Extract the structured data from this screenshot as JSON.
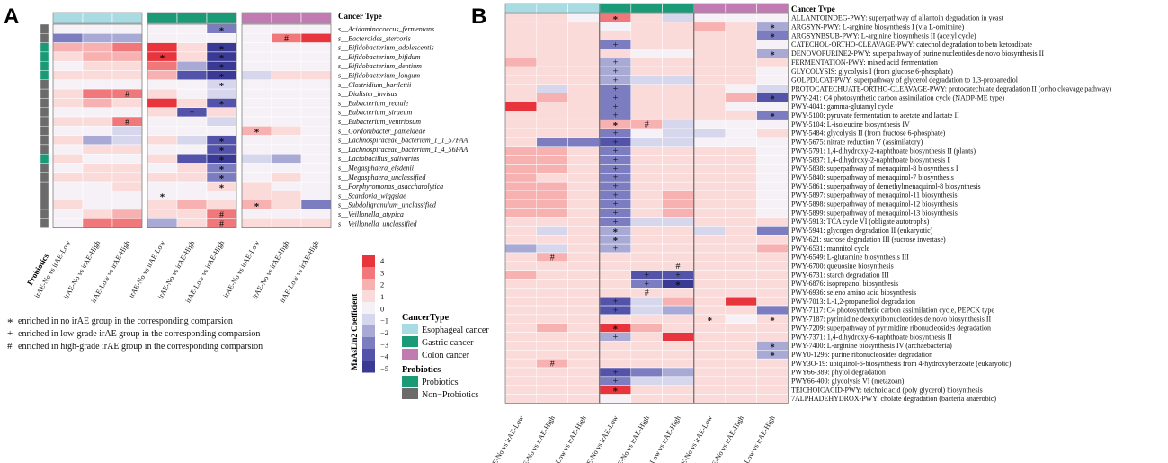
{
  "panel_a": {
    "label": "A",
    "cancer_type_header": "Cancer Type",
    "probiotics_label": "Probiotics",
    "taxa": [
      "s__Acidaminococcus_fermentans",
      "s__Bacteroides_stercoris",
      "s__Bifidobacterium_adolescentis",
      "s__Bifidobacterium_bifidum",
      "s__Bifidobacterium_dentium",
      "s__Bifidobacterium_longum",
      "s__Clostridium_bartlettii",
      "s__Dialister_invisus",
      "s__Eubacterium_rectale",
      "s__Eubacterium_siraeum",
      "s__Eubacterium_ventriosum",
      "s__Gordonibacter_pamelaeae",
      "s__Lachnospiraceae_bacterium_1_1_57FAA",
      "s__Lachnospiraceae_bacterium_1_4_56FAA",
      "s__Lactobacillus_salivarius",
      "s__Megasphaera_elsdenii",
      "s__Megasphaera_unclassified",
      "s__Porphyromonas_asaccharolytica",
      "s__Scardovia_wiggsiae",
      "s__Subdoligranulum_unclassified",
      "s__Veillonella_atypica",
      "s__Veillonella_unclassified"
    ],
    "probiotic_flags": [
      0,
      0,
      1,
      1,
      1,
      1,
      0,
      0,
      0,
      0,
      0,
      0,
      0,
      0,
      1,
      0,
      0,
      0,
      0,
      0,
      0,
      0
    ],
    "values": [
      [
        0,
        0,
        0,
        0,
        0,
        -3,
        0,
        0,
        0
      ],
      [
        -3,
        -2,
        -2,
        0,
        0,
        0,
        0,
        3,
        4
      ],
      [
        2,
        2,
        3,
        4,
        1,
        -5,
        0,
        0,
        0
      ],
      [
        1,
        2,
        2,
        4,
        1,
        -5,
        0,
        0,
        0
      ],
      [
        0,
        1,
        1,
        3,
        -2,
        -5,
        0,
        0,
        0
      ],
      [
        1,
        1,
        1,
        2,
        -4,
        -5,
        -1,
        1,
        1
      ],
      [
        0,
        0,
        0,
        0,
        0,
        -1,
        0,
        0,
        0
      ],
      [
        1,
        3,
        3,
        1,
        0,
        -1,
        0,
        0,
        0
      ],
      [
        1,
        2,
        1,
        4,
        1,
        -4,
        0,
        0,
        0
      ],
      [
        0,
        0,
        0,
        1,
        -4,
        1,
        0,
        0,
        0
      ],
      [
        1,
        1,
        3,
        0,
        0,
        -1,
        0,
        0,
        0
      ],
      [
        0,
        0,
        -1,
        0,
        0,
        0,
        2,
        1,
        0
      ],
      [
        1,
        -2,
        -1,
        1,
        -1,
        -4,
        0,
        0,
        0
      ],
      [
        0,
        1,
        1,
        0,
        0,
        -4,
        0,
        0,
        0
      ],
      [
        1,
        0,
        0,
        1,
        -4,
        -5,
        -1,
        -2,
        0
      ],
      [
        0,
        1,
        1,
        0,
        1,
        -3,
        0,
        0,
        0
      ],
      [
        1,
        1,
        1,
        1,
        1,
        -3,
        0,
        1,
        0
      ],
      [
        0,
        0,
        1,
        0,
        0,
        1,
        1,
        0,
        0
      ],
      [
        0,
        0,
        0,
        0,
        0,
        0,
        1,
        1,
        0
      ],
      [
        1,
        0,
        0,
        1,
        2,
        1,
        2,
        1,
        -3
      ],
      [
        0,
        1,
        2,
        1,
        1,
        3,
        0,
        0,
        0
      ],
      [
        0,
        3,
        3,
        -2,
        1,
        3,
        1,
        1,
        1
      ]
    ],
    "marks": [
      {
        "r": 0,
        "c": 5,
        "m": "*"
      },
      {
        "r": 1,
        "c": 7,
        "m": "#"
      },
      {
        "r": 2,
        "c": 5,
        "m": "*"
      },
      {
        "r": 3,
        "c": 3,
        "m": "*"
      },
      {
        "r": 3,
        "c": 5,
        "m": "*"
      },
      {
        "r": 4,
        "c": 5,
        "m": "*"
      },
      {
        "r": 5,
        "c": 5,
        "m": "*"
      },
      {
        "r": 6,
        "c": 5,
        "m": "*"
      },
      {
        "r": 7,
        "c": 2,
        "m": "#"
      },
      {
        "r": 8,
        "c": 5,
        "m": "*"
      },
      {
        "r": 9,
        "c": 4,
        "m": "+"
      },
      {
        "r": 10,
        "c": 2,
        "m": "#"
      },
      {
        "r": 11,
        "c": 6,
        "m": "*"
      },
      {
        "r": 12,
        "c": 5,
        "m": "*"
      },
      {
        "r": 13,
        "c": 5,
        "m": "*"
      },
      {
        "r": 14,
        "c": 5,
        "m": "*"
      },
      {
        "r": 15,
        "c": 5,
        "m": "*"
      },
      {
        "r": 16,
        "c": 5,
        "m": "*"
      },
      {
        "r": 17,
        "c": 5,
        "m": "*"
      },
      {
        "r": 18,
        "c": 3,
        "m": "*"
      },
      {
        "r": 19,
        "c": 6,
        "m": "*"
      },
      {
        "r": 20,
        "c": 5,
        "m": "#"
      },
      {
        "r": 21,
        "c": 5,
        "m": "#"
      }
    ],
    "columns": [
      "irAE-No vs irAE-Low",
      "irAE-No vs irAE-High",
      "irAE-Low vs irAE-High",
      "irAE-No vs irAE-Low",
      "irAE-No vs irAE-High",
      "irAE-Low vs irAE-High",
      "irAE-No vs irAE-Low",
      "irAE-No vs irAE-High",
      "irAE-Low vs irAE-High"
    ]
  },
  "panel_b": {
    "label": "B",
    "cancer_type_header": "Cancer Type",
    "pathways": [
      "ALLANTOINDEG-PWY: superpathway of allantoin degradation in yeast",
      "ARGSYN-PWY: L-arginine biosynthesis I (via L-ornithine)",
      "ARGSYNBSUB-PWY: L-arginine biosynthesis II (acetyl cycle)",
      "CATECHOL-ORTHO-CLEAVAGE-PWY: catechol degradation to beta ketoadipate",
      "DENOVOPURINE2-PWY: superpathway of purine nucleotides de novo biosynthesis II",
      "FERMENTATION-PWY: mixed acid fermentation",
      "GLYCOLYSIS: glycolysis I (from glucose 6-phosphate)",
      "GOLPDLCAT-PWY: superpathway of glycerol degradation to 1,3-propanediol",
      "PROTOCATECHUATE-ORTHO-CLEAVAGE-PWY: protocatechuate degradation II (ortho cleavage pathway)",
      "PWY-241: C4 photosynthetic carbon assimilation cycle (NADP-ME type)",
      "PWY-4041: gamma-glutamyl cycle",
      "PWY-5100: pyruvate fermentation to acetate and lactate II",
      "PWY-5104: L-isoleucine biosynthesis IV",
      "PWY-5484: glycolysis II (from fructose 6-phosphate)",
      "PWY-5675: nitrate reduction V (assimilatory)",
      "PWY-5791: 1,4-dihydroxy-2-naphthoate biosynthesis II (plants)",
      "PWY-5837: 1,4-dihydroxy-2-naphthoate biosynthesis I",
      "PWY-5838: superpathway of menaquinol-8 biosynthesis I",
      "PWY-5840: superpathway of menaquinol-7 biosynthesis",
      "PWY-5861: superpathway of demethylmenaquinol-8 biosynthesis",
      "PWY-5897: superpathway of menaquinol-11 biosynthesis",
      "PWY-5898: superpathway of menaquinol-12 biosynthesis",
      "PWY-5899: superpathway of menaquinol-13 biosynthesis",
      "PWY-5913: TCA cycle VI (obligate autotrophs)",
      "PWY-5941: glycogen degradation II (eukaryotic)",
      "PWY-621: sucrose degradation III (sucrose invertase)",
      "PWY-6531: mannitol cycle",
      "PWY-6549: L-glutamine biosynthesis III",
      "PWY-6700: queuosine biosynthesis",
      "PWY-6731: starch degradation III",
      "PWY-6876: isopropanol biosynthesis",
      "PWY-6936: seleno amino acid biosynthesis",
      "PWY-7013: L-1,2-propanediol degradation",
      "PWY-7117: C4 photosynthetic carbon assimilation cycle, PEPCK type",
      "PWY-7187: pyrimidine deoxyribonucleotides de novo biosynthesis II",
      "PWY-7209: superpathway of pyrimidine ribonucleosides degradation",
      "PWY-7371: 1,4-dihydroxy-6-naphthoate biosynthesis II",
      "PWY-7400: L-arginine biosynthesis IV (archaebacteria)",
      "PWY0-1296: purine ribonucleosides degradation",
      "PWY3O-19: ubiquinol-6-biosynthesis from 4-hydroxybenzoate (eukaryotic)",
      "PWY66-389: phytol degradation",
      "PWY66-400: glycolysis VI (metazoan)",
      "TEICHOICACID-PWY: teichoic acid (poly glycerol) biosynthesis",
      "7ALPHADEHYDROX-PWY: cholate degradation (bacteria anaerobic)"
    ],
    "values": [
      [
        1,
        1,
        0,
        3,
        1,
        -1,
        0,
        0,
        0
      ],
      [
        1,
        1,
        1,
        0,
        1,
        1,
        2,
        1,
        -2
      ],
      [
        1,
        1,
        1,
        1,
        1,
        1,
        1,
        1,
        -3
      ],
      [
        1,
        1,
        1,
        -3,
        1,
        1,
        1,
        1,
        0
      ],
      [
        1,
        1,
        1,
        1,
        0,
        0,
        1,
        1,
        -2
      ],
      [
        2,
        1,
        1,
        -2,
        1,
        1,
        1,
        1,
        1
      ],
      [
        1,
        1,
        1,
        -2,
        1,
        1,
        1,
        1,
        0
      ],
      [
        1,
        1,
        1,
        -2,
        -1,
        -1,
        1,
        1,
        0
      ],
      [
        1,
        -1,
        1,
        -3,
        1,
        1,
        1,
        0,
        -1
      ],
      [
        1,
        2,
        1,
        -3,
        1,
        1,
        1,
        2,
        -4
      ],
      [
        4,
        1,
        1,
        -3,
        1,
        1,
        1,
        0,
        0
      ],
      [
        1,
        1,
        1,
        -3,
        1,
        1,
        1,
        1,
        -3
      ],
      [
        1,
        1,
        1,
        2,
        2,
        -1,
        0,
        0,
        0
      ],
      [
        1,
        1,
        1,
        -3,
        0,
        -1,
        -1,
        0,
        1
      ],
      [
        1,
        -3,
        -3,
        -4,
        -1,
        -1,
        0,
        0,
        0
      ],
      [
        2,
        2,
        1,
        -3,
        1,
        1,
        1,
        1,
        0
      ],
      [
        2,
        2,
        1,
        -3,
        1,
        1,
        1,
        1,
        0
      ],
      [
        2,
        2,
        1,
        -3,
        1,
        1,
        1,
        1,
        0
      ],
      [
        2,
        1,
        1,
        -3,
        1,
        1,
        1,
        1,
        0
      ],
      [
        2,
        2,
        1,
        -3,
        1,
        1,
        1,
        1,
        0
      ],
      [
        2,
        2,
        1,
        -3,
        1,
        2,
        1,
        1,
        0
      ],
      [
        2,
        2,
        1,
        -3,
        1,
        2,
        1,
        1,
        0
      ],
      [
        2,
        2,
        1,
        -3,
        1,
        2,
        1,
        1,
        0
      ],
      [
        1,
        1,
        1,
        -3,
        -1,
        -1,
        1,
        1,
        1
      ],
      [
        1,
        -1,
        1,
        -2,
        1,
        1,
        -1,
        1,
        -3
      ],
      [
        1,
        1,
        1,
        -2,
        1,
        1,
        1,
        1,
        1
      ],
      [
        -2,
        -1,
        1,
        -2,
        1,
        1,
        1,
        1,
        2
      ],
      [
        1,
        2,
        1,
        1,
        1,
        1,
        1,
        1,
        1
      ],
      [
        1,
        1,
        1,
        1,
        1,
        1,
        1,
        1,
        1
      ],
      [
        2,
        1,
        1,
        1,
        -4,
        -4,
        1,
        1,
        1
      ],
      [
        1,
        1,
        1,
        1,
        -3,
        -5,
        1,
        1,
        1
      ],
      [
        1,
        1,
        1,
        1,
        1,
        1,
        1,
        1,
        1
      ],
      [
        1,
        1,
        1,
        -4,
        -1,
        2,
        1,
        4,
        1
      ],
      [
        1,
        1,
        1,
        -4,
        -1,
        -2,
        1,
        1,
        -3
      ],
      [
        1,
        1,
        1,
        1,
        1,
        1,
        1,
        0,
        1
      ],
      [
        1,
        2,
        1,
        4,
        2,
        1,
        1,
        1,
        1
      ],
      [
        1,
        1,
        1,
        -2,
        1,
        4,
        1,
        1,
        1
      ],
      [
        1,
        1,
        1,
        1,
        1,
        1,
        1,
        1,
        -2
      ],
      [
        1,
        1,
        1,
        1,
        1,
        1,
        1,
        1,
        -2
      ],
      [
        1,
        2,
        1,
        1,
        1,
        1,
        1,
        1,
        1
      ],
      [
        1,
        1,
        1,
        -4,
        -3,
        -2,
        1,
        1,
        1
      ],
      [
        1,
        1,
        1,
        -3,
        -1,
        -1,
        1,
        1,
        1
      ],
      [
        1,
        1,
        1,
        4,
        1,
        1,
        1,
        1,
        1
      ],
      [
        1,
        1,
        1,
        0,
        1,
        1,
        1,
        1,
        1
      ]
    ],
    "marks": [
      {
        "r": 0,
        "c": 3,
        "m": "*"
      },
      {
        "r": 1,
        "c": 8,
        "m": "*"
      },
      {
        "r": 2,
        "c": 8,
        "m": "*"
      },
      {
        "r": 3,
        "c": 3,
        "m": "+"
      },
      {
        "r": 4,
        "c": 8,
        "m": "*"
      },
      {
        "r": 5,
        "c": 3,
        "m": "+"
      },
      {
        "r": 6,
        "c": 3,
        "m": "+"
      },
      {
        "r": 7,
        "c": 3,
        "m": "+"
      },
      {
        "r": 8,
        "c": 3,
        "m": "+"
      },
      {
        "r": 9,
        "c": 3,
        "m": "+"
      },
      {
        "r": 9,
        "c": 8,
        "m": "*"
      },
      {
        "r": 10,
        "c": 3,
        "m": "+"
      },
      {
        "r": 11,
        "c": 3,
        "m": "+"
      },
      {
        "r": 11,
        "c": 8,
        "m": "*"
      },
      {
        "r": 12,
        "c": 3,
        "m": "*"
      },
      {
        "r": 12,
        "c": 4,
        "m": "#"
      },
      {
        "r": 13,
        "c": 3,
        "m": "+"
      },
      {
        "r": 14,
        "c": 3,
        "m": "+"
      },
      {
        "r": 15,
        "c": 3,
        "m": "+"
      },
      {
        "r": 16,
        "c": 3,
        "m": "+"
      },
      {
        "r": 17,
        "c": 3,
        "m": "+"
      },
      {
        "r": 18,
        "c": 3,
        "m": "+"
      },
      {
        "r": 19,
        "c": 3,
        "m": "+"
      },
      {
        "r": 20,
        "c": 3,
        "m": "+"
      },
      {
        "r": 21,
        "c": 3,
        "m": "+"
      },
      {
        "r": 22,
        "c": 3,
        "m": "+"
      },
      {
        "r": 23,
        "c": 3,
        "m": "+"
      },
      {
        "r": 24,
        "c": 3,
        "m": "*"
      },
      {
        "r": 25,
        "c": 3,
        "m": "*"
      },
      {
        "r": 26,
        "c": 3,
        "m": "+"
      },
      {
        "r": 27,
        "c": 1,
        "m": "#"
      },
      {
        "r": 28,
        "c": 5,
        "m": "#"
      },
      {
        "r": 29,
        "c": 4,
        "m": "+"
      },
      {
        "r": 29,
        "c": 5,
        "m": "+"
      },
      {
        "r": 30,
        "c": 4,
        "m": "+"
      },
      {
        "r": 30,
        "c": 5,
        "m": "*"
      },
      {
        "r": 31,
        "c": 4,
        "m": "#"
      },
      {
        "r": 32,
        "c": 3,
        "m": "+"
      },
      {
        "r": 33,
        "c": 3,
        "m": "+"
      },
      {
        "r": 34,
        "c": 6,
        "m": "*"
      },
      {
        "r": 34,
        "c": 8,
        "m": "*"
      },
      {
        "r": 35,
        "c": 3,
        "m": "*"
      },
      {
        "r": 36,
        "c": 3,
        "m": "+"
      },
      {
        "r": 37,
        "c": 8,
        "m": "*"
      },
      {
        "r": 38,
        "c": 8,
        "m": "*"
      },
      {
        "r": 39,
        "c": 1,
        "m": "#"
      },
      {
        "r": 40,
        "c": 3,
        "m": "+"
      },
      {
        "r": 41,
        "c": 3,
        "m": "+"
      },
      {
        "r": 42,
        "c": 3,
        "m": "*"
      }
    ],
    "columns": [
      "irAE-No vs irAE-Low",
      "irAE-No vs irAE-High",
      "irAE-Low vs irAE-High",
      "irAE-No vs irAE-Low",
      "irAE-No vs irAE-High",
      "irAE-Low vs irAE-High",
      "irAE-No vs irAE-Low",
      "irAE-No vs irAE-High",
      "irAE-Low vs irAE-High"
    ]
  },
  "legend": {
    "colorbar_title": "MaAsLin2 Coefficient",
    "colorbar_ticks": [
      "4",
      "3",
      "2",
      "1",
      "0",
      "−1",
      "−2",
      "−3",
      "−4",
      "−5"
    ],
    "cancer_type_title": "CancerType",
    "cancer_types": [
      {
        "name": "Esophageal cancer",
        "color": "#a9dbe3"
      },
      {
        "name": "Gastric cancer",
        "color": "#1a9a76"
      },
      {
        "name": "Colon cancer",
        "color": "#c27ab2"
      }
    ],
    "probiotics_title": "Probiotics",
    "probiotics_items": [
      {
        "name": "Probiotics",
        "color": "#1a9a76"
      },
      {
        "name": "Non−Probiotics",
        "color": "#6b6b6b"
      }
    ],
    "symbol_notes": [
      {
        "symbol": "*",
        "text": "enriched in no irAE group in the corresponding comparsion"
      },
      {
        "symbol": "+",
        "text": "enriched in low-grade irAE group in the corresponding comparsion"
      },
      {
        "symbol": "#",
        "text": "enriched in high-grade irAE group in the corresponding comparsion"
      }
    ]
  },
  "colors": {
    "pos4": "#e8343c",
    "pos3": "#f1787a",
    "pos2": "#f7b1b1",
    "pos1": "#fbdada",
    "zero": "#f6f1f6",
    "neg1": "#d6d6ec",
    "neg2": "#a9a9d6",
    "neg3": "#7c7cc0",
    "neg4": "#5353aa",
    "neg5": "#3a3a95",
    "esophageal": "#a9dbe3",
    "gastric": "#1a9a76",
    "colon": "#c27ab2",
    "probiotic": "#1a9a76",
    "non_probiotic": "#6b6b6b"
  }
}
